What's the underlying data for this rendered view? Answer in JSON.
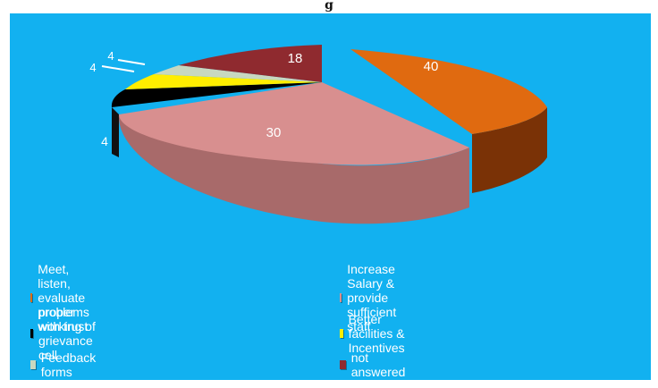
{
  "page": {
    "title_fragment": "g"
  },
  "chart_data": {
    "type": "pie",
    "view": "3d-exploded",
    "slices": [
      {
        "label": "Meet,  listen, evaluate  problems  with trust",
        "value": 40,
        "color": "#e06a10",
        "side_color": "#7a3206",
        "exploded": true
      },
      {
        "label": "Increase Salary & provide sufficient staff",
        "value": 30,
        "color": "#d88f8f",
        "side_color": "#a86a6a",
        "exploded": false
      },
      {
        "label": "proper working of grievance cell",
        "value": 4,
        "color": "#000000",
        "side_color": "#111111",
        "exploded": false
      },
      {
        "label": "Better facilities & Incentives",
        "value": 4,
        "color": "#ffee00",
        "side_color": "#b8aa00",
        "exploded": false
      },
      {
        "label": "Feedback forms",
        "value": 4,
        "color": "#c8d8c0",
        "side_color": "#93a38b",
        "exploded": false
      },
      {
        "label": "not answered",
        "value": 18,
        "color": "#8f2a2f",
        "side_color": "#5a1418",
        "exploded": false
      }
    ],
    "data_labels": [
      "40",
      "30",
      "4",
      "4",
      "4",
      "18"
    ],
    "legend_position": "bottom"
  }
}
